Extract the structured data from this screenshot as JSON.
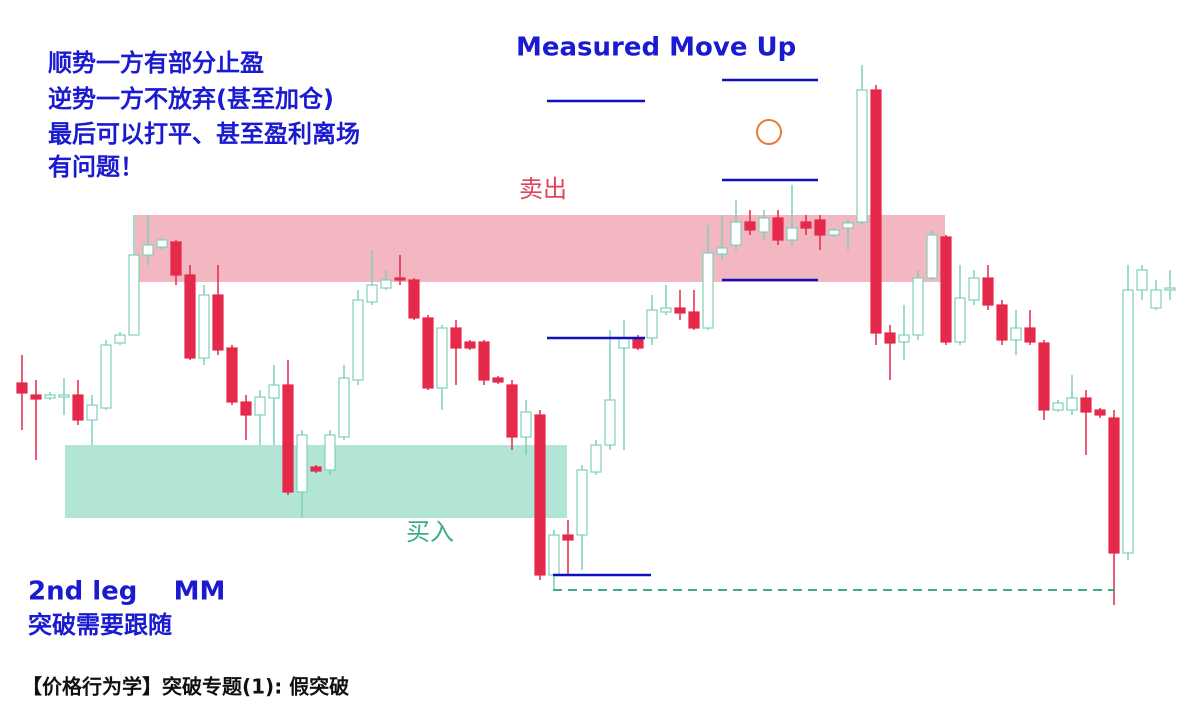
{
  "chart_data": {
    "type": "candlestick",
    "title": "Measured Move Up",
    "annotations": [
      "顺势一方有部分止盈",
      "逆势一方不放弃(甚至加仓)",
      "最后可以打平、甚至盈利离场",
      "有问题！"
    ],
    "notes": [
      "2nd leg    MM",
      "突破需要跟随"
    ],
    "caption": "【价格行为学】突破专题(1): 假突破",
    "ylim": [
      0,
      650
    ],
    "up_color": "#7fd0b8",
    "down_color": "#e5294b",
    "open": [
      267,
      255,
      252,
      253,
      255,
      230,
      242,
      307,
      315,
      395,
      403,
      408,
      375,
      292,
      355,
      302,
      248,
      235,
      252,
      265,
      158,
      183,
      180,
      213,
      270,
      348,
      362,
      372,
      370,
      332,
      262,
      322,
      308,
      308,
      272,
      265,
      213,
      235,
      75,
      115,
      115,
      178,
      205,
      302,
      312,
      312,
      338,
      342,
      338,
      322,
      396,
      405,
      428,
      418,
      432,
      410,
      428,
      430,
      415,
      422,
      428,
      560,
      317,
      308,
      315,
      372,
      413,
      308,
      350,
      372,
      345,
      310,
      322,
      307,
      240,
      240,
      252,
      240,
      232,
      97,
      360,
      342,
      360
    ],
    "high": [
      295,
      270,
      258,
      272,
      270,
      255,
      310,
      318,
      435,
      435,
      412,
      410,
      385,
      365,
      385,
      305,
      255,
      260,
      285,
      290,
      220,
      185,
      220,
      285,
      360,
      400,
      380,
      395,
      372,
      335,
      325,
      330,
      310,
      310,
      274,
      270,
      250,
      240,
      120,
      130,
      185,
      210,
      320,
      330,
      315,
      355,
      365,
      360,
      360,
      425,
      435,
      450,
      440,
      440,
      440,
      465,
      435,
      435,
      422,
      430,
      585,
      565,
      325,
      345,
      380,
      420,
      415,
      385,
      380,
      385,
      350,
      340,
      340,
      310,
      250,
      275,
      260,
      242,
      240,
      385,
      385,
      370,
      380
    ],
    "low": [
      220,
      190,
      250,
      235,
      225,
      205,
      240,
      305,
      315,
      385,
      400,
      365,
      290,
      285,
      295,
      245,
      210,
      205,
      205,
      155,
      132,
      177,
      175,
      210,
      265,
      345,
      360,
      365,
      330,
      260,
      240,
      265,
      300,
      265,
      266,
      200,
      195,
      70,
      60,
      75,
      80,
      175,
      200,
      200,
      300,
      305,
      335,
      330,
      320,
      320,
      390,
      400,
      415,
      410,
      405,
      405,
      415,
      400,
      413,
      400,
      425,
      305,
      270,
      290,
      310,
      370,
      305,
      305,
      345,
      340,
      305,
      295,
      305,
      230,
      238,
      235,
      195,
      232,
      45,
      90,
      350,
      340,
      350
    ],
    "close": [
      257,
      251,
      255,
      255,
      230,
      245,
      305,
      315,
      395,
      405,
      410,
      375,
      292,
      355,
      300,
      248,
      235,
      253,
      265,
      158,
      215,
      179,
      215,
      272,
      350,
      365,
      370,
      370,
      332,
      262,
      322,
      302,
      302,
      270,
      268,
      213,
      238,
      75,
      115,
      110,
      180,
      205,
      250,
      312,
      302,
      340,
      342,
      337,
      322,
      397,
      402,
      428,
      420,
      432,
      410,
      422,
      422,
      415,
      420,
      427,
      560,
      317,
      307,
      315,
      372,
      415,
      308,
      352,
      372,
      345,
      310,
      322,
      308,
      240,
      247,
      252,
      238,
      235,
      97,
      360,
      380,
      360,
      362
    ],
    "zones": [
      {
        "label": "卖出",
        "from": 368,
        "to": 435,
        "color": "#f3b7c2",
        "label_color": "#e0445a"
      },
      {
        "label": "买入",
        "from": 132,
        "to": 205,
        "color": "#b3e5d7",
        "label_color": "#3aae8a"
      }
    ],
    "levels": [
      549,
      570,
      470,
      370,
      312,
      75
    ],
    "level_color": "#1010c0",
    "dashed_level": 60,
    "dashed_color": "#3aae8a"
  }
}
